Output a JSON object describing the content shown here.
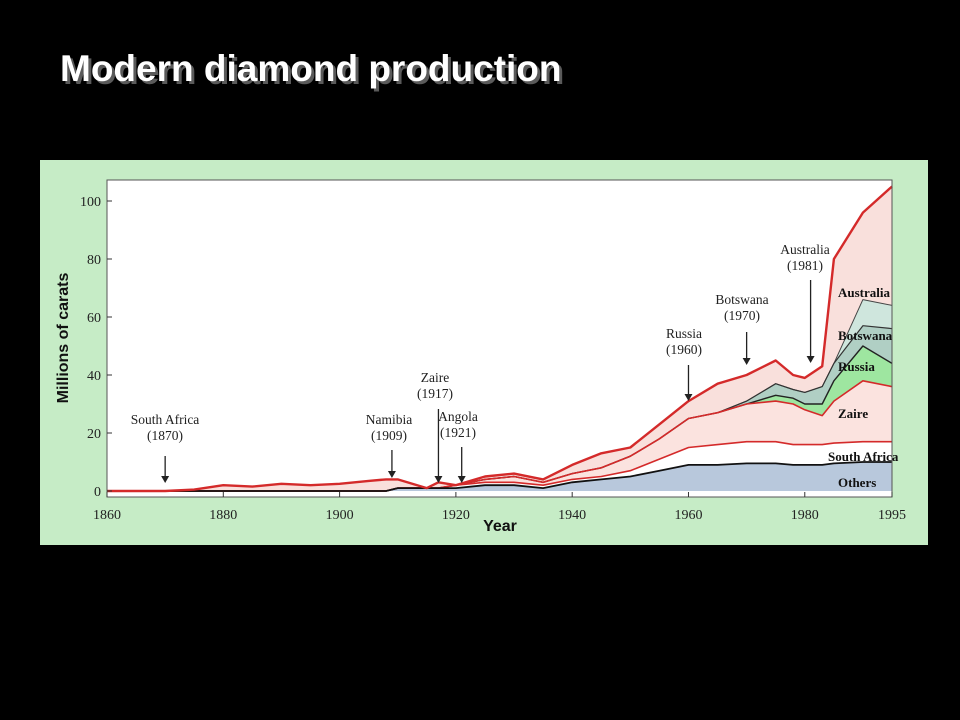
{
  "slide": {
    "title": "Modern diamond production"
  },
  "colors": {
    "background": "#000000",
    "figure_bg": "#c6ecc6",
    "plot_bg": "#ffffff",
    "total_line": "#d42a2a",
    "australia": "#f9e0dc",
    "botswana": "#cfe6dd",
    "russia": "#b0cfc4",
    "zaire": "#9ee6a0",
    "south_africa": "#fbe3df",
    "others": "#b8c8dc"
  },
  "chart_data": {
    "type": "area",
    "title": "",
    "xlabel": "Year",
    "ylabel": "Millions of carats",
    "xlim": [
      1860,
      1995
    ],
    "ylim": [
      0,
      105
    ],
    "xticks": [
      "1860",
      "1880",
      "1900",
      "1920",
      "1940",
      "1960",
      "1980",
      "1995"
    ],
    "yticks": [
      "0",
      "20",
      "40",
      "60",
      "80",
      "100"
    ],
    "stacking": "cumulative; each series value is the upper boundary of its band",
    "x": [
      1860,
      1870,
      1875,
      1880,
      1885,
      1890,
      1895,
      1900,
      1905,
      1908,
      1910,
      1915,
      1917,
      1920,
      1925,
      1930,
      1935,
      1940,
      1945,
      1950,
      1955,
      1960,
      1965,
      1970,
      1975,
      1978,
      1980,
      1983,
      1985,
      1990,
      1995
    ],
    "series": [
      {
        "name": "Others",
        "values": [
          0,
          0,
          0,
          0,
          0,
          0,
          0,
          0,
          0,
          0,
          1,
          1,
          1,
          1,
          2,
          2,
          1,
          3,
          4,
          5,
          7,
          9,
          9,
          9.5,
          9.5,
          9,
          9,
          9,
          9.5,
          10,
          10
        ]
      },
      {
        "name": "South Africa",
        "values": [
          0,
          0,
          0,
          0,
          0,
          0,
          0,
          0,
          0,
          0,
          1,
          1,
          1,
          2,
          3,
          3,
          2,
          4,
          5,
          7,
          11,
          15,
          16,
          17,
          17,
          16,
          16,
          16,
          16.5,
          17,
          17
        ]
      },
      {
        "name": "Zaire",
        "values": [
          0,
          0,
          0,
          0,
          0,
          0,
          0,
          0,
          0,
          0,
          1,
          1,
          1,
          2,
          4,
          5,
          3,
          6,
          8,
          12,
          18,
          25,
          27,
          30,
          31,
          30,
          28,
          26,
          31,
          38,
          36
        ]
      },
      {
        "name": "Russia",
        "values": [
          0,
          0,
          0,
          0,
          0,
          0,
          0,
          0,
          0,
          0,
          1,
          1,
          1,
          2,
          4,
          5,
          3,
          6,
          8,
          12,
          18,
          25,
          27,
          30,
          33,
          32,
          30,
          30,
          38,
          50,
          44
        ]
      },
      {
        "name": "Botswana",
        "values": [
          0,
          0,
          0,
          0,
          0,
          0,
          0,
          0,
          0,
          0,
          1,
          1,
          1,
          2,
          4,
          5,
          3,
          6,
          8,
          12,
          18,
          25,
          27,
          31,
          37,
          35,
          34,
          36,
          44,
          57,
          56
        ]
      },
      {
        "name": "Australia",
        "values": [
          0,
          0,
          0,
          0,
          0,
          0,
          0,
          0,
          0,
          0,
          1,
          1,
          1,
          2,
          4,
          5,
          3,
          6,
          8,
          12,
          18,
          25,
          27,
          31,
          37,
          35,
          34,
          36,
          44,
          66,
          64
        ]
      },
      {
        "name": "Total",
        "values": [
          0,
          0,
          0.5,
          2,
          1.5,
          2.5,
          2,
          2.5,
          3.5,
          4,
          4,
          1,
          3,
          2,
          5,
          6,
          4,
          9,
          13,
          15,
          23,
          31,
          37,
          40,
          45,
          40,
          39,
          43,
          80,
          96,
          105
        ]
      }
    ],
    "area_labels": [
      "Australia",
      "Botswana",
      "Russia",
      "Zaire",
      "South Africa",
      "Others"
    ],
    "annotations": [
      {
        "label": [
          "South Africa",
          "(1870)"
        ],
        "year": 1870
      },
      {
        "label": [
          "Namibia",
          "(1909)"
        ],
        "year": 1909
      },
      {
        "label": [
          "Zaire",
          "(1917)"
        ],
        "year": 1917
      },
      {
        "label": [
          "Angola",
          "(1921)"
        ],
        "year": 1921
      },
      {
        "label": [
          "Russia",
          "(1960)"
        ],
        "year": 1960
      },
      {
        "label": [
          "Botswana",
          "(1970)"
        ],
        "year": 1970
      },
      {
        "label": [
          "Australia",
          "(1981)"
        ],
        "year": 1981
      }
    ]
  }
}
